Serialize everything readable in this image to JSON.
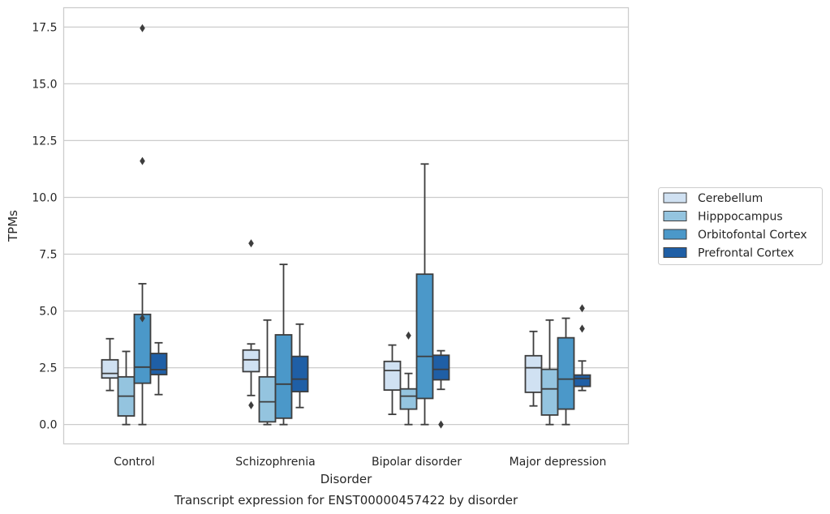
{
  "chart_data": {
    "type": "boxplot",
    "caption": "Transcript expression for ENST00000457422 by disorder",
    "xlabel": "Disorder",
    "ylabel": "TPMs",
    "ylim": [
      -0.85,
      18.35
    ],
    "yticks": [
      0.0,
      2.5,
      5.0,
      7.5,
      10.0,
      12.5,
      15.0,
      17.5
    ],
    "ytick_labels": [
      "0.0",
      "2.5",
      "5.0",
      "7.5",
      "10.0",
      "12.5",
      "15.0",
      "17.5"
    ],
    "grid": "horizontal",
    "legend_position": "right",
    "categories": [
      "Control",
      "Schizophrenia",
      "Bipolar disorder",
      "Major depression"
    ],
    "series": [
      {
        "name": "Cerebellum",
        "color": "#d0e1f2",
        "boxes": [
          {
            "whisker_low": 1.5,
            "q1": 2.05,
            "median": 2.25,
            "q3": 2.85,
            "whisker_high": 3.78,
            "outliers": []
          },
          {
            "whisker_low": 1.28,
            "q1": 2.33,
            "median": 2.85,
            "q3": 3.28,
            "whisker_high": 3.55,
            "outliers": [
              0.85,
              7.98
            ]
          },
          {
            "whisker_low": 0.45,
            "q1": 1.52,
            "median": 2.38,
            "q3": 2.78,
            "whisker_high": 3.5,
            "outliers": []
          },
          {
            "whisker_low": 0.82,
            "q1": 1.42,
            "median": 2.5,
            "q3": 3.03,
            "whisker_high": 4.1,
            "outliers": []
          }
        ]
      },
      {
        "name": "Hipppocampus",
        "color": "#94c4df",
        "boxes": [
          {
            "whisker_low": 0.0,
            "q1": 0.38,
            "median": 1.25,
            "q3": 2.1,
            "whisker_high": 3.22,
            "outliers": []
          },
          {
            "whisker_low": 0.0,
            "q1": 0.12,
            "median": 1.0,
            "q3": 2.1,
            "whisker_high": 4.6,
            "outliers": []
          },
          {
            "whisker_low": 0.0,
            "q1": 0.68,
            "median": 1.25,
            "q3": 1.57,
            "whisker_high": 2.25,
            "outliers": [
              3.92
            ]
          },
          {
            "whisker_low": 0.0,
            "q1": 0.42,
            "median": 1.57,
            "q3": 2.43,
            "whisker_high": 4.6,
            "outliers": []
          }
        ]
      },
      {
        "name": "Orbitofontal Cortex",
        "color": "#4b98c9",
        "boxes": [
          {
            "whisker_low": 0.0,
            "q1": 1.82,
            "median": 2.53,
            "q3": 4.85,
            "whisker_high": 6.2,
            "outliers": [
              4.68,
              11.6,
              17.45
            ]
          },
          {
            "whisker_low": 0.0,
            "q1": 0.28,
            "median": 1.78,
            "q3": 3.95,
            "whisker_high": 7.05,
            "outliers": []
          },
          {
            "whisker_low": 0.0,
            "q1": 1.15,
            "median": 3.0,
            "q3": 6.62,
            "whisker_high": 11.47,
            "outliers": []
          },
          {
            "whisker_low": 0.0,
            "q1": 0.68,
            "median": 2.0,
            "q3": 3.82,
            "whisker_high": 4.68,
            "outliers": []
          }
        ]
      },
      {
        "name": "Prefrontal Cortex",
        "color": "#1f5fa6",
        "boxes": [
          {
            "whisker_low": 1.32,
            "q1": 2.2,
            "median": 2.42,
            "q3": 3.13,
            "whisker_high": 3.6,
            "outliers": []
          },
          {
            "whisker_low": 0.75,
            "q1": 1.45,
            "median": 2.0,
            "q3": 3.0,
            "whisker_high": 4.42,
            "outliers": []
          },
          {
            "whisker_low": 1.55,
            "q1": 1.97,
            "median": 2.43,
            "q3": 3.05,
            "whisker_high": 3.25,
            "outliers": [
              0.0
            ]
          },
          {
            "whisker_low": 1.5,
            "q1": 1.68,
            "median": 2.03,
            "q3": 2.18,
            "whisker_high": 2.8,
            "outliers": [
              4.22,
              5.12
            ]
          }
        ]
      }
    ]
  }
}
